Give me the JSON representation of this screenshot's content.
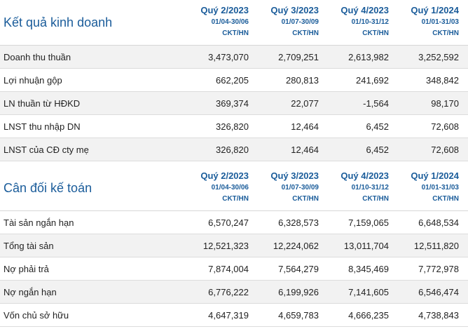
{
  "income": {
    "title": "Kết quả kinh doanh",
    "periods": [
      {
        "quarter": "Quý 2/2023",
        "range": "01/04-30/06",
        "type": "CKT/HN"
      },
      {
        "quarter": "Quý 3/2023",
        "range": "01/07-30/09",
        "type": "CKT/HN"
      },
      {
        "quarter": "Quý 4/2023",
        "range": "01/10-31/12",
        "type": "CKT/HN"
      },
      {
        "quarter": "Quý 1/2024",
        "range": "01/01-31/03",
        "type": "CKT/HN"
      }
    ],
    "rows": [
      {
        "label": "Doanh thu thuần",
        "values": [
          "3,473,070",
          "2,709,251",
          "2,613,982",
          "3,252,592"
        ]
      },
      {
        "label": "Lợi nhuận gộp",
        "values": [
          "662,205",
          "280,813",
          "241,692",
          "348,842"
        ]
      },
      {
        "label": "LN thuần từ HĐKD",
        "values": [
          "369,374",
          "22,077",
          "-1,564",
          "98,170"
        ]
      },
      {
        "label": "LNST thu nhập DN",
        "values": [
          "326,820",
          "12,464",
          "6,452",
          "72,608"
        ]
      },
      {
        "label": "LNST của CĐ cty mẹ",
        "values": [
          "326,820",
          "12,464",
          "6,452",
          "72,608"
        ]
      }
    ]
  },
  "balance": {
    "title": "Cân đối kế toán",
    "periods": [
      {
        "quarter": "Quý 2/2023",
        "range": "01/04-30/06",
        "type": "CKT/HN"
      },
      {
        "quarter": "Quý 3/2023",
        "range": "01/07-30/09",
        "type": "CKT/HN"
      },
      {
        "quarter": "Quý 4/2023",
        "range": "01/10-31/12",
        "type": "CKT/HN"
      },
      {
        "quarter": "Quý 1/2024",
        "range": "01/01-31/03",
        "type": "CKT/HN"
      }
    ],
    "rows": [
      {
        "label": "Tài sản ngắn hạn",
        "values": [
          "6,570,247",
          "6,328,573",
          "7,159,065",
          "6,648,534"
        ]
      },
      {
        "label": "Tổng tài sản",
        "values": [
          "12,521,323",
          "12,224,062",
          "13,011,704",
          "12,511,820"
        ]
      },
      {
        "label": "Nợ phải trả",
        "values": [
          "7,874,004",
          "7,564,279",
          "8,345,469",
          "7,772,978"
        ]
      },
      {
        "label": "Nợ ngắn hạn",
        "values": [
          "6,776,222",
          "6,199,926",
          "7,141,605",
          "6,546,474"
        ]
      },
      {
        "label": "Vốn chủ sở hữu",
        "values": [
          "4,647,319",
          "4,659,783",
          "4,666,235",
          "4,738,843"
        ]
      }
    ]
  }
}
